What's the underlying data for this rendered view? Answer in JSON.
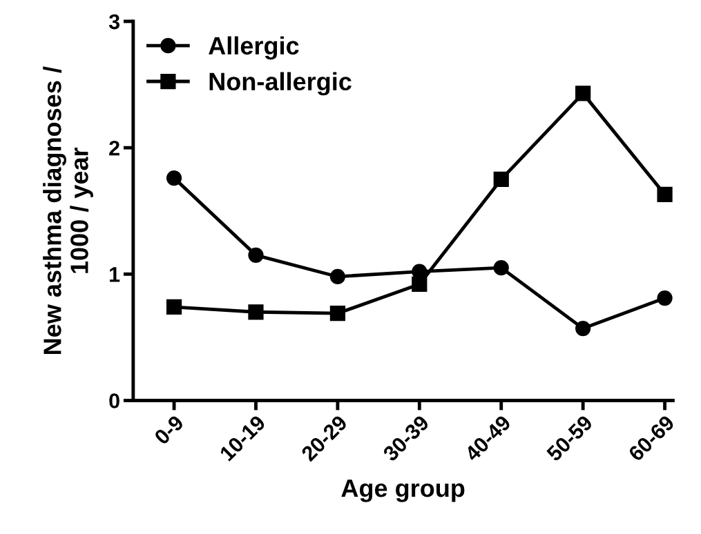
{
  "chart_data": {
    "type": "line",
    "xlabel": "Age group",
    "ylabel": "New asthma diagnoses /\n1000 / year",
    "categories": [
      "0-9",
      "10-19",
      "20-29",
      "30-39",
      "40-49",
      "50-59",
      "60-69"
    ],
    "series": [
      {
        "name": "Allergic",
        "color": "#000000",
        "marker": "circle",
        "values": [
          1.76,
          1.15,
          0.98,
          1.02,
          1.05,
          0.57,
          0.81
        ]
      },
      {
        "name": "Non-allergic",
        "color": "#000000",
        "marker": "square",
        "values": [
          0.74,
          0.7,
          0.69,
          0.92,
          1.75,
          2.43,
          1.63
        ]
      }
    ],
    "ylim": [
      0,
      3
    ],
    "yticks": [
      0,
      1,
      2,
      3
    ],
    "grid": false,
    "legend": "top left",
    "line_style": "solid"
  }
}
